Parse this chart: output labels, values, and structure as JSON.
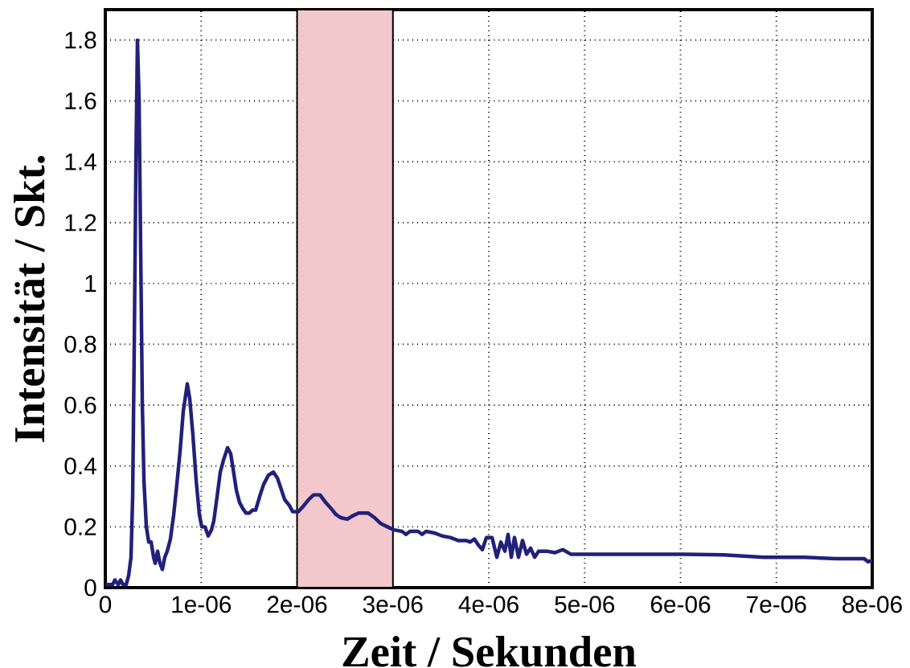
{
  "chart_data": {
    "type": "line",
    "xlabel": "**Zeit  / Sekunden**",
    "ylabel": "**Intensität  / Skt.**",
    "xlim": [
      0,
      8e-06
    ],
    "ylim": [
      0,
      1.9
    ],
    "xticks": [
      {
        "value": 0,
        "label": "0"
      },
      {
        "value": 1e-06,
        "label": "1e-06"
      },
      {
        "value": 2e-06,
        "label": "2e-06"
      },
      {
        "value": 3e-06,
        "label": "3e-06"
      },
      {
        "value": 4e-06,
        "label": "4e-06"
      },
      {
        "value": 5e-06,
        "label": "5e-06"
      },
      {
        "value": 6e-06,
        "label": "6e-06"
      },
      {
        "value": 7e-06,
        "label": "7e-06"
      },
      {
        "value": 8e-06,
        "label": "8e-06"
      }
    ],
    "yticks": [
      {
        "value": 0,
        "label": "0"
      },
      {
        "value": 0.2,
        "label": "0.2"
      },
      {
        "value": 0.4,
        "label": "0.4"
      },
      {
        "value": 0.6,
        "label": "0.6"
      },
      {
        "value": 0.8,
        "label": "0.8"
      },
      {
        "value": 1,
        "label": "1"
      },
      {
        "value": 1.2,
        "label": "1.2"
      },
      {
        "value": 1.4,
        "label": "1.4"
      },
      {
        "value": 1.6,
        "label": "1.6"
      },
      {
        "value": 1.8,
        "label": "1.8"
      }
    ],
    "grid": true,
    "marker": "none",
    "line_style": "solid",
    "bands": [
      {
        "axis": "x",
        "from": 2e-06,
        "to": 3e-06,
        "color": "#f2c8cc"
      }
    ],
    "series": [
      {
        "color": "#22207a",
        "x": [
          0,
          7.5e-08,
          1e-07,
          1.34e-07,
          1.59e-07,
          1.84e-07,
          2.18e-07,
          2.43e-07,
          2.68e-07,
          2.85e-07,
          3.02e-07,
          3.19e-07,
          3.35e-07,
          3.52e-07,
          3.69e-07,
          3.86e-07,
          4.03e-07,
          4.28e-07,
          4.53e-07,
          4.78e-07,
          5.03e-07,
          5.2e-07,
          5.45e-07,
          5.7e-07,
          5.95e-07,
          6.2e-07,
          6.46e-07,
          6.79e-07,
          7.13e-07,
          7.46e-07,
          7.8e-07,
          8.13e-07,
          8.55e-07,
          8.81e-07,
          9.14e-07,
          9.48e-07,
          9.81e-07,
          1.006e-06,
          1.04e-06,
          1.073e-06,
          1.107e-06,
          1.132e-06,
          1.166e-06,
          1.199e-06,
          1.233e-06,
          1.275e-06,
          1.308e-06,
          1.333e-06,
          1.367e-06,
          1.4e-06,
          1.434e-06,
          1.468e-06,
          1.501e-06,
          1.535e-06,
          1.568e-06,
          1.61e-06,
          1.652e-06,
          1.702e-06,
          1.753e-06,
          1.795e-06,
          1.828e-06,
          1.87e-06,
          1.92e-06,
          1.954e-06,
          2.013e-06,
          2.071e-06,
          2.122e-06,
          2.172e-06,
          2.239e-06,
          2.298e-06,
          2.356e-06,
          2.407e-06,
          2.457e-06,
          2.524e-06,
          2.574e-06,
          2.642e-06,
          2.742e-06,
          2.809e-06,
          2.876e-06,
          2.943e-06,
          3.01e-06,
          3.094e-06,
          3.136e-06,
          3.178e-06,
          3.262e-06,
          3.304e-06,
          3.346e-06,
          3.43e-06,
          3.514e-06,
          3.597e-06,
          3.681e-06,
          3.765e-06,
          3.807e-06,
          3.849e-06,
          3.891e-06,
          3.933e-06,
          3.975e-06,
          4.034e-06,
          4.084e-06,
          4.126e-06,
          4.168e-06,
          4.201e-06,
          4.235e-06,
          4.268e-06,
          4.31e-06,
          4.352e-06,
          4.394e-06,
          4.436e-06,
          4.478e-06,
          4.52e-06,
          4.604e-06,
          4.688e-06,
          4.772e-06,
          4.855e-06,
          4.939e-06,
          5.023e-06,
          5.275e-06,
          5.61e-06,
          6.029e-06,
          6.449e-06,
          6.868e-06,
          7.287e-06,
          7.623e-06,
          7.916e-06,
          7.958e-06,
          8e-06
        ],
        "values": [
          0.01,
          0.01,
          0.025,
          0.01,
          0.025,
          0.01,
          0.01,
          0.04,
          0.1,
          0.3,
          0.8,
          1.4,
          1.8,
          1.6,
          1.1,
          0.6,
          0.35,
          0.2,
          0.15,
          0.15,
          0.1,
          0.08,
          0.12,
          0.08,
          0.06,
          0.1,
          0.12,
          0.16,
          0.24,
          0.34,
          0.45,
          0.58,
          0.67,
          0.62,
          0.5,
          0.35,
          0.24,
          0.2,
          0.2,
          0.17,
          0.19,
          0.22,
          0.3,
          0.38,
          0.42,
          0.46,
          0.44,
          0.39,
          0.32,
          0.28,
          0.26,
          0.245,
          0.245,
          0.255,
          0.255,
          0.3,
          0.34,
          0.37,
          0.38,
          0.36,
          0.33,
          0.29,
          0.27,
          0.25,
          0.25,
          0.27,
          0.29,
          0.305,
          0.305,
          0.28,
          0.26,
          0.24,
          0.23,
          0.225,
          0.235,
          0.245,
          0.245,
          0.23,
          0.21,
          0.2,
          0.19,
          0.185,
          0.175,
          0.185,
          0.185,
          0.175,
          0.185,
          0.18,
          0.17,
          0.165,
          0.155,
          0.155,
          0.15,
          0.16,
          0.14,
          0.125,
          0.165,
          0.165,
          0.1,
          0.15,
          0.12,
          0.175,
          0.1,
          0.165,
          0.1,
          0.155,
          0.11,
          0.13,
          0.1,
          0.12,
          0.12,
          0.115,
          0.125,
          0.11,
          0.11,
          0.11,
          0.11,
          0.11,
          0.11,
          0.108,
          0.1,
          0.1,
          0.095,
          0.095,
          0.085,
          0.09
        ]
      }
    ]
  }
}
